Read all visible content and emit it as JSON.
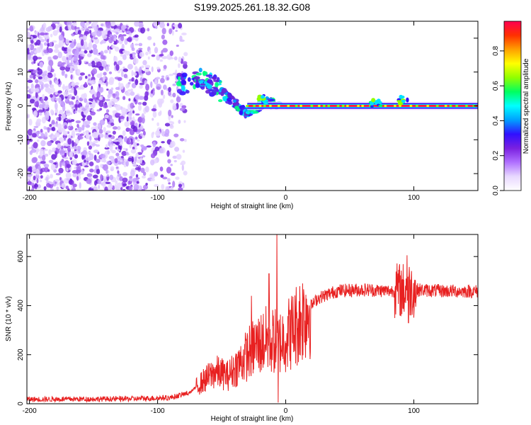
{
  "title": "S199.2025.261.18.32.G08",
  "chart_data": [
    {
      "type": "heatmap",
      "name": "spectrogram",
      "xlabel": "Height of straight line (km)",
      "ylabel": "Frequency (Hz)",
      "xlim": [
        -202,
        150
      ],
      "ylim": [
        -25,
        25
      ],
      "xticks": [
        -200,
        -100,
        0,
        100
      ],
      "yticks": [
        -20,
        -10,
        0,
        10,
        20
      ],
      "colorbar": {
        "label": "Normalized spectral amplitude",
        "range": [
          0,
          0.97
        ],
        "ticks": [
          0.0,
          0.2,
          0.4,
          0.6,
          0.8
        ],
        "colors": [
          "#ffffff",
          "#e8d8ff",
          "#b070ff",
          "#7a20e0",
          "#3010ff",
          "#00a0ff",
          "#00ffff",
          "#00ff60",
          "#90ff00",
          "#ffff00",
          "#ffa000",
          "#ff3000",
          "#ff0050"
        ]
      },
      "features": {
        "noise_region_x": [
          -202,
          -78
        ],
        "carrier_frequency_hz": 0,
        "carrier_start_x": -30,
        "descending_trace": [
          {
            "x": -85,
            "f": 6
          },
          {
            "x": -70,
            "f": 8
          },
          {
            "x": -60,
            "f": 7
          },
          {
            "x": -50,
            "f": 4
          },
          {
            "x": -40,
            "f": 1
          },
          {
            "x": -32,
            "f": -2
          },
          {
            "x": -25,
            "f": -1
          },
          {
            "x": -15,
            "f": 1
          },
          {
            "x": -5,
            "f": 0
          }
        ],
        "bursts": [
          {
            "x": -18,
            "f": 2
          },
          {
            "x": 70,
            "f": 0.5
          },
          {
            "x": 92,
            "f": 1.5
          }
        ]
      }
    },
    {
      "type": "line",
      "name": "snr",
      "xlabel": "Height of straight line (km)",
      "ylabel": "SNR (10 * v/v)",
      "xlim": [
        -202,
        150
      ],
      "ylim": [
        0,
        690
      ],
      "xticks": [
        -200,
        -100,
        0,
        100
      ],
      "yticks": [
        0,
        200,
        400,
        600
      ],
      "color": "#e82020",
      "profile": [
        {
          "x": -202,
          "y": 18
        },
        {
          "x": -120,
          "y": 20
        },
        {
          "x": -90,
          "y": 25
        },
        {
          "x": -75,
          "y": 45
        },
        {
          "x": -65,
          "y": 90
        },
        {
          "x": -55,
          "y": 130
        },
        {
          "x": -45,
          "y": 115
        },
        {
          "x": -35,
          "y": 170
        },
        {
          "x": -25,
          "y": 230
        },
        {
          "x": -15,
          "y": 260
        },
        {
          "x": -5,
          "y": 250
        },
        {
          "x": 5,
          "y": 300
        },
        {
          "x": 15,
          "y": 370
        },
        {
          "x": 25,
          "y": 430
        },
        {
          "x": 40,
          "y": 460
        },
        {
          "x": 60,
          "y": 465
        },
        {
          "x": 80,
          "y": 460
        },
        {
          "x": 100,
          "y": 465
        },
        {
          "x": 120,
          "y": 460
        },
        {
          "x": 150,
          "y": 458
        }
      ],
      "spikes": [
        {
          "x": -7,
          "y": 690
        },
        {
          "x": -6,
          "y": 5
        },
        {
          "x": -13,
          "y": 530
        },
        {
          "x": -27,
          "y": 440
        },
        {
          "x": 95,
          "y": 605
        },
        {
          "x": 96,
          "y": 330
        }
      ],
      "noise_amplitude": 0.1
    }
  ]
}
